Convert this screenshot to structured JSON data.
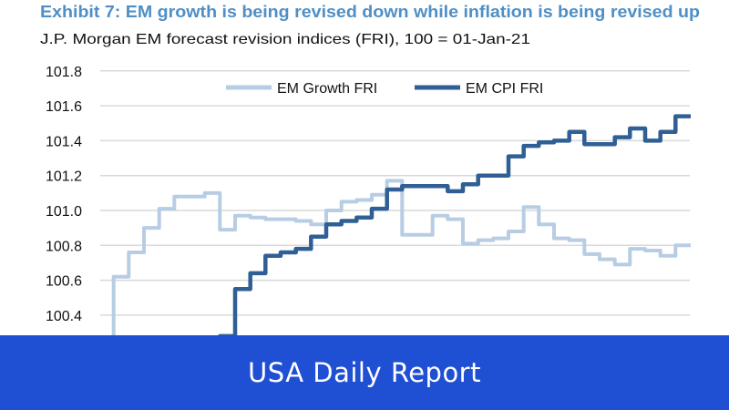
{
  "chart_data": {
    "type": "line",
    "title": "Exhibit 7: EM growth is being revised down while inflation is being revised up",
    "subtitle": "J.P. Morgan EM forecast revision indices (FRI), 100 = 01-Jan-21",
    "xlabel": "",
    "ylabel": "",
    "ylim": [
      100.2,
      101.8
    ],
    "yticks": [
      "100.4",
      "100.6",
      "100.8",
      "101.0",
      "101.2",
      "101.4",
      "101.6",
      "101.8"
    ],
    "grid": true,
    "legend_position": "top-center",
    "step": true,
    "series": [
      {
        "name": "EM Growth FRI",
        "color": "#b7cde4",
        "values": [
          100.2,
          100.62,
          100.76,
          100.9,
          101.01,
          101.08,
          101.08,
          101.1,
          100.89,
          100.97,
          100.96,
          100.95,
          100.95,
          100.94,
          100.92,
          101.0,
          101.05,
          101.06,
          101.09,
          101.17,
          100.86,
          100.86,
          100.97,
          100.95,
          100.81,
          100.83,
          100.84,
          100.88,
          101.02,
          100.92,
          100.84,
          100.83,
          100.75,
          100.72,
          100.69,
          100.78,
          100.77,
          100.74,
          100.8
        ]
      },
      {
        "name": "EM CPI FRI",
        "color": "#2f5f95",
        "values": [
          100.2,
          100.2,
          100.2,
          100.2,
          100.2,
          100.2,
          100.2,
          100.2,
          100.28,
          100.55,
          100.64,
          100.74,
          100.76,
          100.78,
          100.85,
          100.92,
          100.94,
          100.96,
          101.01,
          101.12,
          101.14,
          101.14,
          101.14,
          101.11,
          101.15,
          101.2,
          101.2,
          101.31,
          101.37,
          101.39,
          101.4,
          101.45,
          101.38,
          101.38,
          101.42,
          101.47,
          101.4,
          101.45,
          101.54
        ]
      }
    ]
  },
  "banner": {
    "text": "USA Daily Report"
  },
  "colors": {
    "title": "#4f8fc6",
    "banner": "#1f4fd3",
    "grid": "#d9d9d9"
  }
}
